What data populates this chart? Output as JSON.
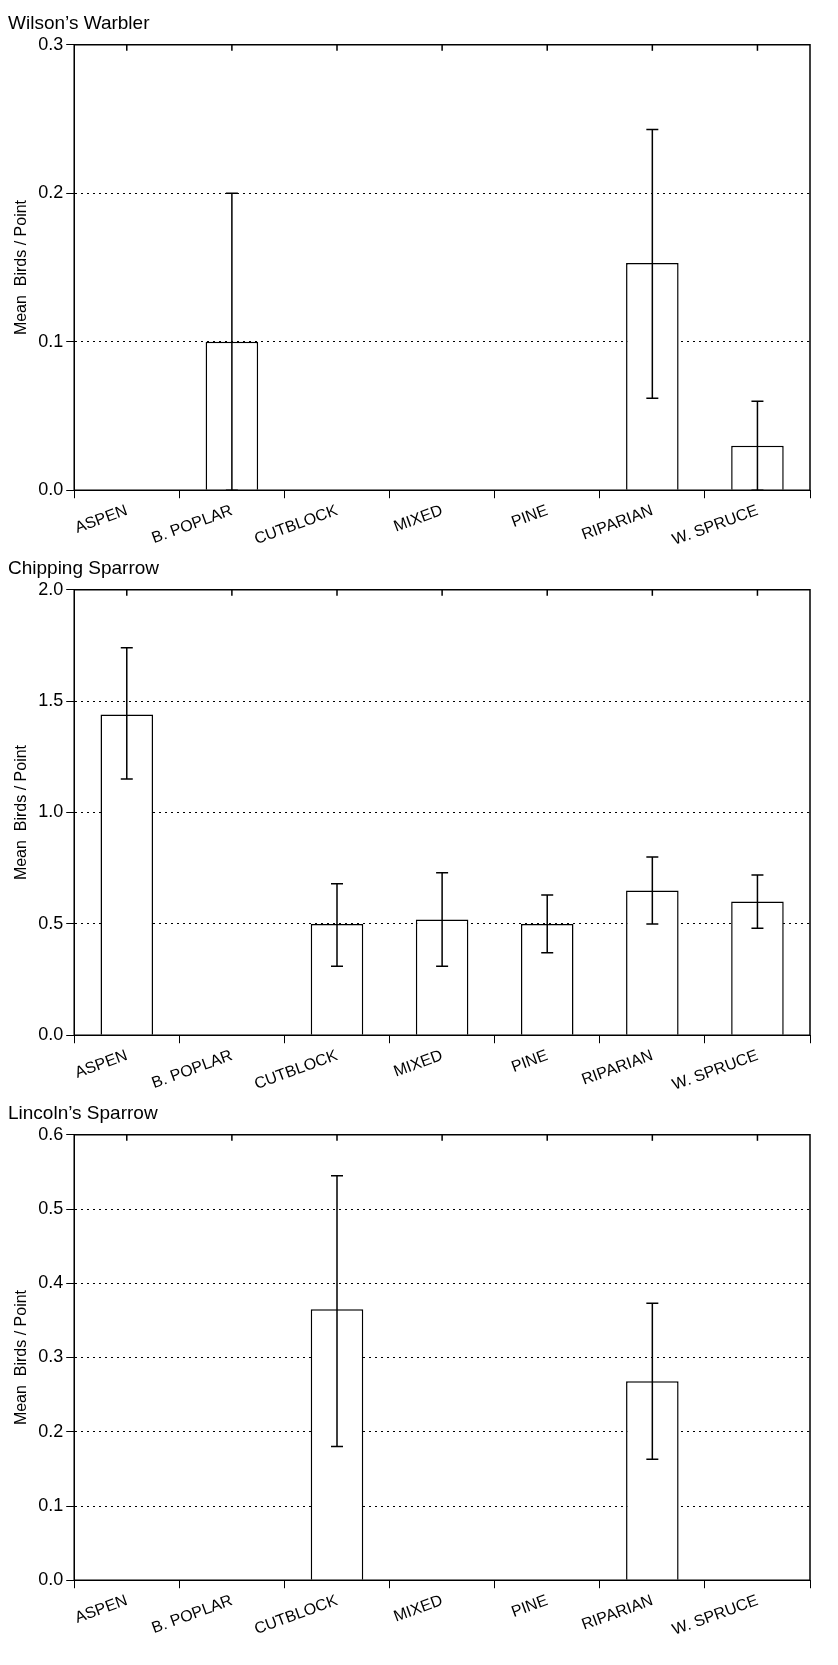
{
  "chart_data": [
    {
      "type": "bar",
      "title": "Wilson’s Warbler",
      "ylabel": "Mean  Birds / Point",
      "categories": [
        "ASPEN",
        "B. POPLAR",
        "CUTBLOCK",
        "MIXED",
        "PINE",
        "RIPARIAN",
        "W. SPRUCE"
      ],
      "values": [
        0,
        0.1,
        0,
        0,
        0,
        0.153,
        0.03
      ],
      "errors": [
        null,
        [
          0,
          0.2
        ],
        null,
        null,
        null,
        [
          0.062,
          0.243
        ],
        [
          0,
          0.06
        ]
      ],
      "color": "#ffffff",
      "ylim": [
        0,
        0.3
      ],
      "yticks": [
        {
          "value": 0,
          "label": "0.0"
        },
        {
          "value": 0.1,
          "label": "0.1"
        },
        {
          "value": 0.2,
          "label": "0.2"
        },
        {
          "value": 0.3,
          "label": "0.3"
        }
      ],
      "grid": "y",
      "legend": false
    },
    {
      "type": "bar",
      "title": "Chipping Sparrow",
      "ylabel": "Mean  Birds / Point",
      "categories": [
        "ASPEN",
        "B. POPLAR",
        "CUTBLOCK",
        "MIXED",
        "PINE",
        "RIPARIAN",
        "W. SPRUCE"
      ],
      "values": [
        1.44,
        0,
        0.5,
        0.52,
        0.5,
        0.65,
        0.6
      ],
      "errors": [
        [
          1.15,
          1.74
        ],
        null,
        [
          0.31,
          0.68
        ],
        [
          0.31,
          0.73
        ],
        [
          0.37,
          0.63
        ],
        [
          0.5,
          0.8
        ],
        [
          0.48,
          0.72
        ]
      ],
      "color": "#ffffff",
      "ylim": [
        0,
        2
      ],
      "yticks": [
        {
          "value": 0,
          "label": "0.0"
        },
        {
          "value": 0.5,
          "label": "0.5"
        },
        {
          "value": 1,
          "label": "1.0"
        },
        {
          "value": 1.5,
          "label": "1.5"
        },
        {
          "value": 2,
          "label": "2.0"
        }
      ],
      "grid": "y",
      "legend": false
    },
    {
      "type": "bar",
      "title": "Lincoln’s Sparrow",
      "ylabel": "Mean  Birds / Point",
      "categories": [
        "ASPEN",
        "B. POPLAR",
        "CUTBLOCK",
        "MIXED",
        "PINE",
        "RIPARIAN",
        "W. SPRUCE"
      ],
      "values": [
        0,
        0,
        0.365,
        0,
        0,
        0.268,
        0
      ],
      "errors": [
        null,
        null,
        [
          0.18,
          0.545
        ],
        null,
        null,
        [
          0.163,
          0.373
        ],
        null
      ],
      "color": "#ffffff",
      "ylim": [
        0,
        0.6
      ],
      "yticks": [
        {
          "value": 0,
          "label": "0.0"
        },
        {
          "value": 0.1,
          "label": "0.1"
        },
        {
          "value": 0.2,
          "label": "0.2"
        },
        {
          "value": 0.3,
          "label": "0.3"
        },
        {
          "value": 0.4,
          "label": "0.4"
        },
        {
          "value": 0.5,
          "label": "0.5"
        },
        {
          "value": 0.6,
          "label": "0.6"
        }
      ],
      "grid": "y",
      "legend": false
    }
  ]
}
